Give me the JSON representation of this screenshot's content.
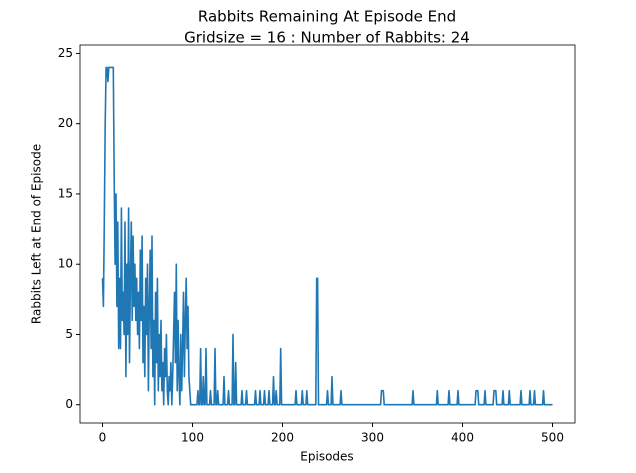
{
  "chart_data": {
    "type": "line",
    "title": "Rabbits Remaining At Episode End",
    "subtitle": "Gridsize = 16 : Number of Rabbits: 24",
    "x_label": "Episodes",
    "y_label": "Rabbits Left at End of Episode",
    "xlim": [
      -25,
      525
    ],
    "ylim": [
      -1.3,
      25.6
    ],
    "xticks": [
      0,
      100,
      200,
      300,
      400,
      500
    ],
    "yticks": [
      0,
      5,
      10,
      15,
      20,
      25
    ],
    "grid": false,
    "series": [
      {
        "color": "#1f77b4",
        "x": [
          0,
          1,
          2,
          3,
          4,
          5,
          6,
          7,
          8,
          9,
          10,
          11,
          12,
          13,
          14,
          15,
          16,
          17,
          18,
          19,
          20,
          21,
          22,
          23,
          24,
          25,
          26,
          27,
          28,
          29,
          30,
          31,
          32,
          33,
          34,
          35,
          36,
          37,
          38,
          39,
          40,
          41,
          42,
          43,
          44,
          45,
          46,
          47,
          48,
          49,
          50,
          51,
          52,
          53,
          54,
          55,
          56,
          57,
          58,
          59,
          60,
          61,
          62,
          63,
          64,
          65,
          66,
          67,
          68,
          69,
          70,
          71,
          72,
          73,
          74,
          75,
          76,
          77,
          78,
          79,
          80,
          81,
          82,
          83,
          84,
          85,
          86,
          87,
          88,
          89,
          90,
          91,
          92,
          93,
          94,
          95,
          96,
          97,
          98,
          99,
          105,
          106,
          107,
          108,
          109,
          110,
          111,
          112,
          113,
          114,
          115,
          116,
          119,
          120,
          121,
          124,
          125,
          126,
          127,
          128,
          129,
          134,
          135,
          136,
          139,
          140,
          141,
          144,
          145,
          146,
          147,
          148,
          149,
          154,
          155,
          156,
          159,
          160,
          161,
          169,
          170,
          171,
          174,
          175,
          176,
          179,
          180,
          181,
          184,
          185,
          186,
          189,
          190,
          191,
          192,
          193,
          194,
          197,
          198,
          199,
          214,
          215,
          216,
          221,
          222,
          223,
          226,
          227,
          228,
          237,
          238,
          239,
          240,
          249,
          250,
          251,
          254,
          255,
          256,
          264,
          265,
          266,
          309,
          310,
          312,
          313,
          344,
          345,
          346,
          371,
          372,
          373,
          384,
          385,
          386,
          394,
          395,
          396,
          414,
          415,
          417,
          418,
          424,
          425,
          426,
          434,
          435,
          437,
          438,
          444,
          445,
          446,
          451,
          452,
          453,
          464,
          465,
          466,
          474,
          475,
          476,
          479,
          480,
          481,
          489,
          490,
          491,
          500
        ],
        "values": [
          9,
          7,
          13,
          20,
          24,
          24,
          23,
          24,
          24,
          24,
          24,
          24,
          24,
          16,
          10,
          15,
          7,
          13,
          4,
          9,
          4,
          14,
          6,
          8,
          5,
          13,
          2,
          10,
          5,
          14,
          3,
          9,
          13,
          6,
          12,
          7,
          10,
          6,
          9,
          5,
          8,
          4,
          11,
          6,
          12,
          3,
          7,
          2,
          9,
          5,
          10,
          1,
          7,
          11,
          4,
          12,
          2,
          6,
          0,
          8,
          3,
          9,
          1,
          5,
          2,
          6,
          1,
          3,
          0,
          4,
          2,
          5,
          1,
          0,
          2,
          1,
          3,
          0,
          2,
          5,
          8,
          3,
          10,
          1,
          6,
          2,
          0,
          5,
          1,
          4,
          8,
          2,
          6,
          9,
          4,
          7,
          2,
          1,
          0,
          0,
          0,
          1,
          0,
          0,
          4,
          0,
          0,
          2,
          0,
          0,
          4,
          0,
          0,
          1,
          0,
          0,
          4,
          0,
          0,
          1,
          0,
          0,
          2,
          0,
          0,
          1,
          0,
          0,
          5,
          0,
          0,
          3,
          0,
          0,
          1,
          0,
          0,
          1,
          0,
          0,
          1,
          0,
          0,
          1,
          0,
          0,
          1,
          0,
          0,
          1,
          0,
          0,
          2,
          0,
          0,
          1,
          0,
          0,
          4,
          0,
          0,
          1,
          0,
          0,
          1,
          0,
          0,
          1,
          0,
          0,
          9,
          9,
          0,
          0,
          1,
          0,
          0,
          2,
          0,
          0,
          1,
          0,
          0,
          1,
          1,
          0,
          0,
          1,
          0,
          0,
          1,
          0,
          0,
          1,
          0,
          0,
          1,
          0,
          0,
          1,
          1,
          0,
          0,
          1,
          0,
          0,
          1,
          1,
          0,
          0,
          1,
          0,
          0,
          1,
          0,
          0,
          1,
          0,
          0,
          1,
          0,
          0,
          1,
          0,
          0,
          1,
          0,
          0
        ]
      }
    ]
  }
}
